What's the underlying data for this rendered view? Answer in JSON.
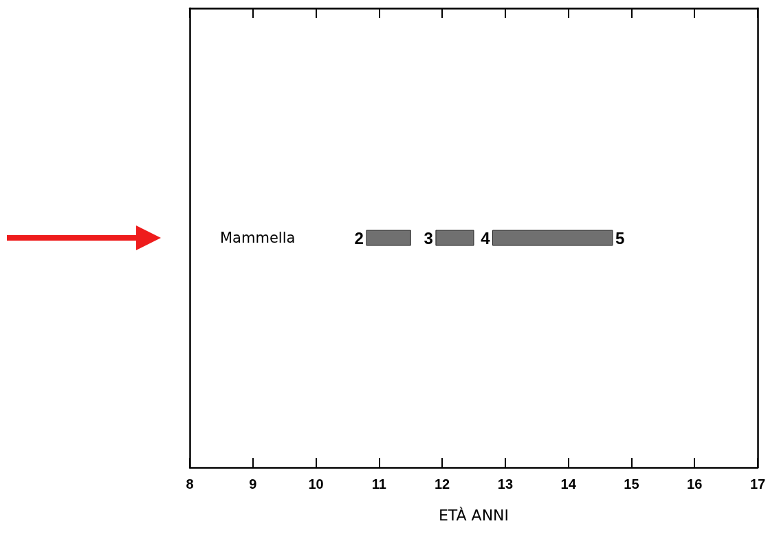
{
  "chart_data": {
    "type": "bar",
    "orientation": "horizontal",
    "xlabel": "ETÀ ANNI",
    "categories": [
      "Mammella"
    ],
    "series": [
      {
        "color": "#707070",
        "values": [
          0.7
        ],
        "base": [
          10.8
        ]
      },
      {
        "color": "#707070",
        "values": [
          0.6
        ],
        "base": [
          11.9
        ]
      },
      {
        "color": "#707070",
        "values": [
          1.9
        ],
        "base": [
          12.8
        ]
      }
    ],
    "annotations": [
      "2",
      "3",
      "4",
      "5"
    ],
    "xlim": [
      8,
      17
    ],
    "xticks": [
      8,
      9,
      10,
      11,
      12,
      13,
      14,
      15,
      16,
      17
    ],
    "grid": false
  }
}
